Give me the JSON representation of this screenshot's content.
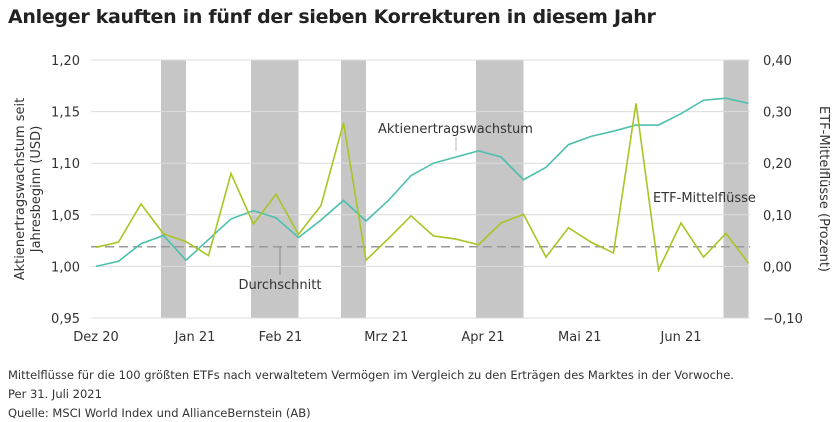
{
  "title": "Anleger kauften in fünf der sieben Korrekturen in diesem Jahr",
  "footnotes": [
    "Mittelflüsse für die 100 größten ETFs nach verwaltetem Vermögen im Vergleich zu den Erträgen des Marktes in der Vorwoche.",
    "Per 31. Juli 2021",
    "Quelle: MSCI World Index und AllianceBernstein (AB)"
  ],
  "chart_data": {
    "type": "line",
    "title": "Anleger kauften in fünf der sieben Korrekturen in diesem Jahr",
    "xlabel": "",
    "ylabel": "Aktienertragswachstum seit Jahresbeginn (USD)",
    "y2label": "ETF-Mittelflüsse (Prozent)",
    "ylim": [
      0.95,
      1.2
    ],
    "y2lim": [
      -0.1,
      0.4
    ],
    "yticks": [
      "1,20",
      "1,15",
      "1,10",
      "1,05",
      "1,00",
      "0,95"
    ],
    "y2ticks": [
      "0,40",
      "0,30",
      "0,20",
      "0,10",
      "0,00",
      "−0,10"
    ],
    "xticks": [
      "Dez 20",
      "Jan 21",
      "Feb 21",
      "Mrz 21",
      "Apr 21",
      "Mai 21",
      "Jun 21"
    ],
    "grid": true,
    "series": [
      {
        "name": "Aktienertragswachstum",
        "axis": "left",
        "color": "#4cbfae",
        "values": [
          1.0,
          1.005,
          1.022,
          1.03,
          1.006,
          1.026,
          1.046,
          1.054,
          1.047,
          1.028,
          1.045,
          1.064,
          1.044,
          1.064,
          1.088,
          1.1,
          1.106,
          1.112,
          1.106,
          1.084,
          1.096,
          1.118,
          1.126,
          1.131,
          1.137,
          1.137,
          1.148,
          1.161,
          1.163,
          1.158
        ]
      },
      {
        "name": "ETF-Mittelflüsse",
        "axis": "right",
        "color": "#a9c523",
        "values": [
          0.037,
          0.047,
          0.121,
          0.063,
          0.048,
          0.021,
          0.18,
          0.082,
          0.14,
          0.062,
          0.118,
          0.278,
          0.012,
          0.054,
          0.098,
          0.059,
          0.053,
          0.042,
          0.084,
          0.101,
          0.018,
          0.075,
          0.047,
          0.026,
          0.316,
          -0.007,
          0.084,
          0.018,
          0.064,
          0.006
        ]
      }
    ],
    "average": {
      "label": "Durchschnitt",
      "value": 0.038,
      "axis": "right"
    },
    "correction_periods_weeks": [
      [
        3,
        4
      ],
      [
        7,
        9
      ],
      [
        11,
        12
      ],
      [
        17,
        19
      ],
      [
        28,
        29
      ]
    ],
    "colors": {
      "band": "#c6c6c6",
      "grid": "#dcdcdc",
      "average": "#999999"
    }
  }
}
